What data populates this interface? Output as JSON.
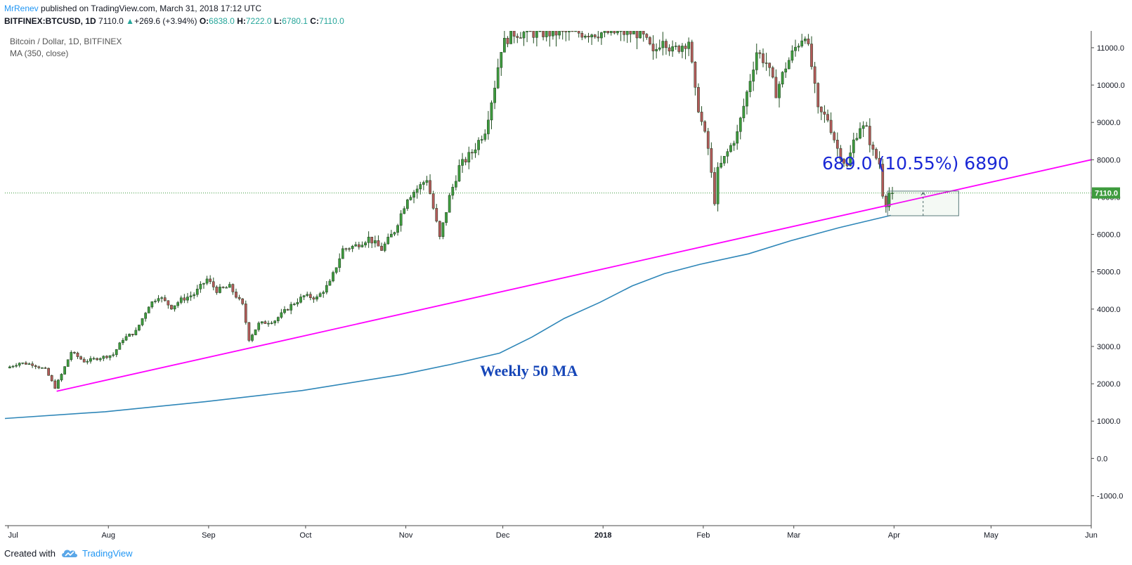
{
  "header": {
    "author": "MrRenev",
    "published": "published on TradingView.com, March 31, 2018 17:12 UTC",
    "symbol": "BITFINEX:BTCUSD, 1D",
    "last_price": "7110.0",
    "up_arrow": "▲",
    "change": "+269.6 (+3.94%)",
    "o_label": "O:",
    "o_value": "6838.0",
    "h_label": "H:",
    "h_value": "7222.0",
    "l_label": "L:",
    "l_value": "6780.1",
    "c_label": "C:",
    "c_value": "7110.0"
  },
  "legend": {
    "title": "Bitcoin / Dollar, 1D, BITFINEX",
    "indicator": "MA (350, close)"
  },
  "annotations": {
    "measure_text": "689.0 (10.55%) 6890",
    "ma_label": "Weekly 50 MA",
    "price_tag": "7110.0"
  },
  "footer": {
    "created": "Created with",
    "brand": "TradingView"
  },
  "colors": {
    "up": "#26a69a",
    "down": "#8b1a1a",
    "candle_body_up": "#3e9b3e",
    "candle_body_down": "#b35a5a",
    "trendline": "#ff00ff",
    "ma": "#2e86b8",
    "measure_text": "#1a28d6",
    "ma_label": "#1646b8",
    "price_tag_bg": "#3e9b3e",
    "grid": "#ffffff",
    "axis": "#131722"
  },
  "chart_data": {
    "type": "candlestick",
    "title": "Bitcoin / Dollar, 1D, BITFINEX",
    "y_ticks": [
      -1000,
      0,
      1000,
      2000,
      3000,
      4000,
      5000,
      6000,
      7000,
      8000,
      9000,
      10000,
      11000
    ],
    "y_tick_labels": [
      "-1000.0",
      "0.0",
      "1000.0",
      "2000.0",
      "3000.0",
      "4000.0",
      "5000.0",
      "6000.0",
      "7000.0",
      "8000.0",
      "9000.0",
      "10000.0",
      "11000.0"
    ],
    "x_ticks": [
      {
        "label": "Jul",
        "date": "2017-07-01"
      },
      {
        "label": "Aug",
        "date": "2017-08-01"
      },
      {
        "label": "Sep",
        "date": "2017-09-01"
      },
      {
        "label": "Oct",
        "date": "2017-10-01"
      },
      {
        "label": "Nov",
        "date": "2017-11-01"
      },
      {
        "label": "Dec",
        "date": "2017-12-01"
      },
      {
        "label": "2018",
        "date": "2018-01-01"
      },
      {
        "label": "Feb",
        "date": "2018-02-01"
      },
      {
        "label": "Mar",
        "date": "2018-03-01"
      },
      {
        "label": "Apr",
        "date": "2018-04-01"
      },
      {
        "label": "May",
        "date": "2018-05-01"
      },
      {
        "label": "Jun",
        "date": "2018-06-01"
      }
    ],
    "x_range": [
      "2017-06-30",
      "2018-06-01"
    ],
    "y_range": [
      -1800,
      11450
    ],
    "last_price": 7110.0,
    "price_path": [
      [
        "2017-07-01",
        2420
      ],
      [
        "2017-07-05",
        2560
      ],
      [
        "2017-07-09",
        2520
      ],
      [
        "2017-07-13",
        2380
      ],
      [
        "2017-07-16",
        1900
      ],
      [
        "2017-07-18",
        2250
      ],
      [
        "2017-07-21",
        2850
      ],
      [
        "2017-07-25",
        2600
      ],
      [
        "2017-07-30",
        2700
      ],
      [
        "2017-08-03",
        2780
      ],
      [
        "2017-08-06",
        3200
      ],
      [
        "2017-08-10",
        3400
      ],
      [
        "2017-08-14",
        4100
      ],
      [
        "2017-08-17",
        4350
      ],
      [
        "2017-08-21",
        4050
      ],
      [
        "2017-08-24",
        4250
      ],
      [
        "2017-08-28",
        4400
      ],
      [
        "2017-09-01",
        4800
      ],
      [
        "2017-09-04",
        4500
      ],
      [
        "2017-09-08",
        4600
      ],
      [
        "2017-09-12",
        4100
      ],
      [
        "2017-09-14",
        3200
      ],
      [
        "2017-09-17",
        3600
      ],
      [
        "2017-09-22",
        3700
      ],
      [
        "2017-09-27",
        4100
      ],
      [
        "2017-10-01",
        4350
      ],
      [
        "2017-10-05",
        4300
      ],
      [
        "2017-10-09",
        4700
      ],
      [
        "2017-10-13",
        5600
      ],
      [
        "2017-10-17",
        5700
      ],
      [
        "2017-10-21",
        5900
      ],
      [
        "2017-10-25",
        5600
      ],
      [
        "2017-10-29",
        6100
      ],
      [
        "2017-11-02",
        7000
      ],
      [
        "2017-11-06",
        7300
      ],
      [
        "2017-11-08",
        7500
      ],
      [
        "2017-11-12",
        5900
      ],
      [
        "2017-11-15",
        7000
      ],
      [
        "2017-11-18",
        7800
      ],
      [
        "2017-11-22",
        8200
      ],
      [
        "2017-11-26",
        8800
      ],
      [
        "2017-11-29",
        10000
      ],
      [
        "2017-12-01",
        11000
      ],
      [
        "2017-12-04",
        11400
      ],
      [
        "2017-12-27",
        11400
      ],
      [
        "2018-01-01",
        11400
      ],
      [
        "2018-01-13",
        11400
      ],
      [
        "2018-01-16",
        11000
      ],
      [
        "2018-01-17",
        10800
      ],
      [
        "2018-01-20",
        11300
      ],
      [
        "2018-01-23",
        10900
      ],
      [
        "2018-01-28",
        11200
      ],
      [
        "2018-01-30",
        9800
      ],
      [
        "2018-02-01",
        9000
      ],
      [
        "2018-02-03",
        8300
      ],
      [
        "2018-02-05",
        6900
      ],
      [
        "2018-02-06",
        7700
      ],
      [
        "2018-02-09",
        8200
      ],
      [
        "2018-02-12",
        8700
      ],
      [
        "2018-02-15",
        9800
      ],
      [
        "2018-02-18",
        10900
      ],
      [
        "2018-02-21",
        10600
      ],
      [
        "2018-02-24",
        9800
      ],
      [
        "2018-02-27",
        10500
      ],
      [
        "2018-03-02",
        11000
      ],
      [
        "2018-03-05",
        11400
      ],
      [
        "2018-03-07",
        10500
      ],
      [
        "2018-03-09",
        9300
      ],
      [
        "2018-03-12",
        9100
      ],
      [
        "2018-03-15",
        8300
      ],
      [
        "2018-03-18",
        7800
      ],
      [
        "2018-03-20",
        8500
      ],
      [
        "2018-03-22",
        8900
      ],
      [
        "2018-03-24",
        8800
      ],
      [
        "2018-03-26",
        8200
      ],
      [
        "2018-03-28",
        7900
      ],
      [
        "2018-03-29",
        7100
      ],
      [
        "2018-03-30",
        6840
      ],
      [
        "2018-03-31",
        7110
      ]
    ],
    "ma_350": [
      [
        "2017-06-30",
        1070
      ],
      [
        "2017-07-31",
        1250
      ],
      [
        "2017-08-31",
        1520
      ],
      [
        "2017-09-30",
        1820
      ],
      [
        "2017-10-31",
        2250
      ],
      [
        "2017-11-15",
        2520
      ],
      [
        "2017-11-30",
        2820
      ],
      [
        "2017-12-10",
        3250
      ],
      [
        "2017-12-20",
        3750
      ],
      [
        "2017-12-31",
        4180
      ],
      [
        "2018-01-10",
        4620
      ],
      [
        "2018-01-20",
        4950
      ],
      [
        "2018-01-31",
        5200
      ],
      [
        "2018-02-15",
        5480
      ],
      [
        "2018-02-28",
        5830
      ],
      [
        "2018-03-15",
        6180
      ],
      [
        "2018-03-31",
        6510
      ]
    ],
    "trendline": {
      "start": [
        "2017-07-16",
        1800
      ],
      "end": [
        "2018-06-01",
        8000
      ]
    },
    "measure_box": {
      "start": "2018-03-30",
      "end": "2018-04-21",
      "low": 6500,
      "high": 7160
    },
    "price_line": 7110.0,
    "grid": false,
    "legend_position": "top-left"
  }
}
